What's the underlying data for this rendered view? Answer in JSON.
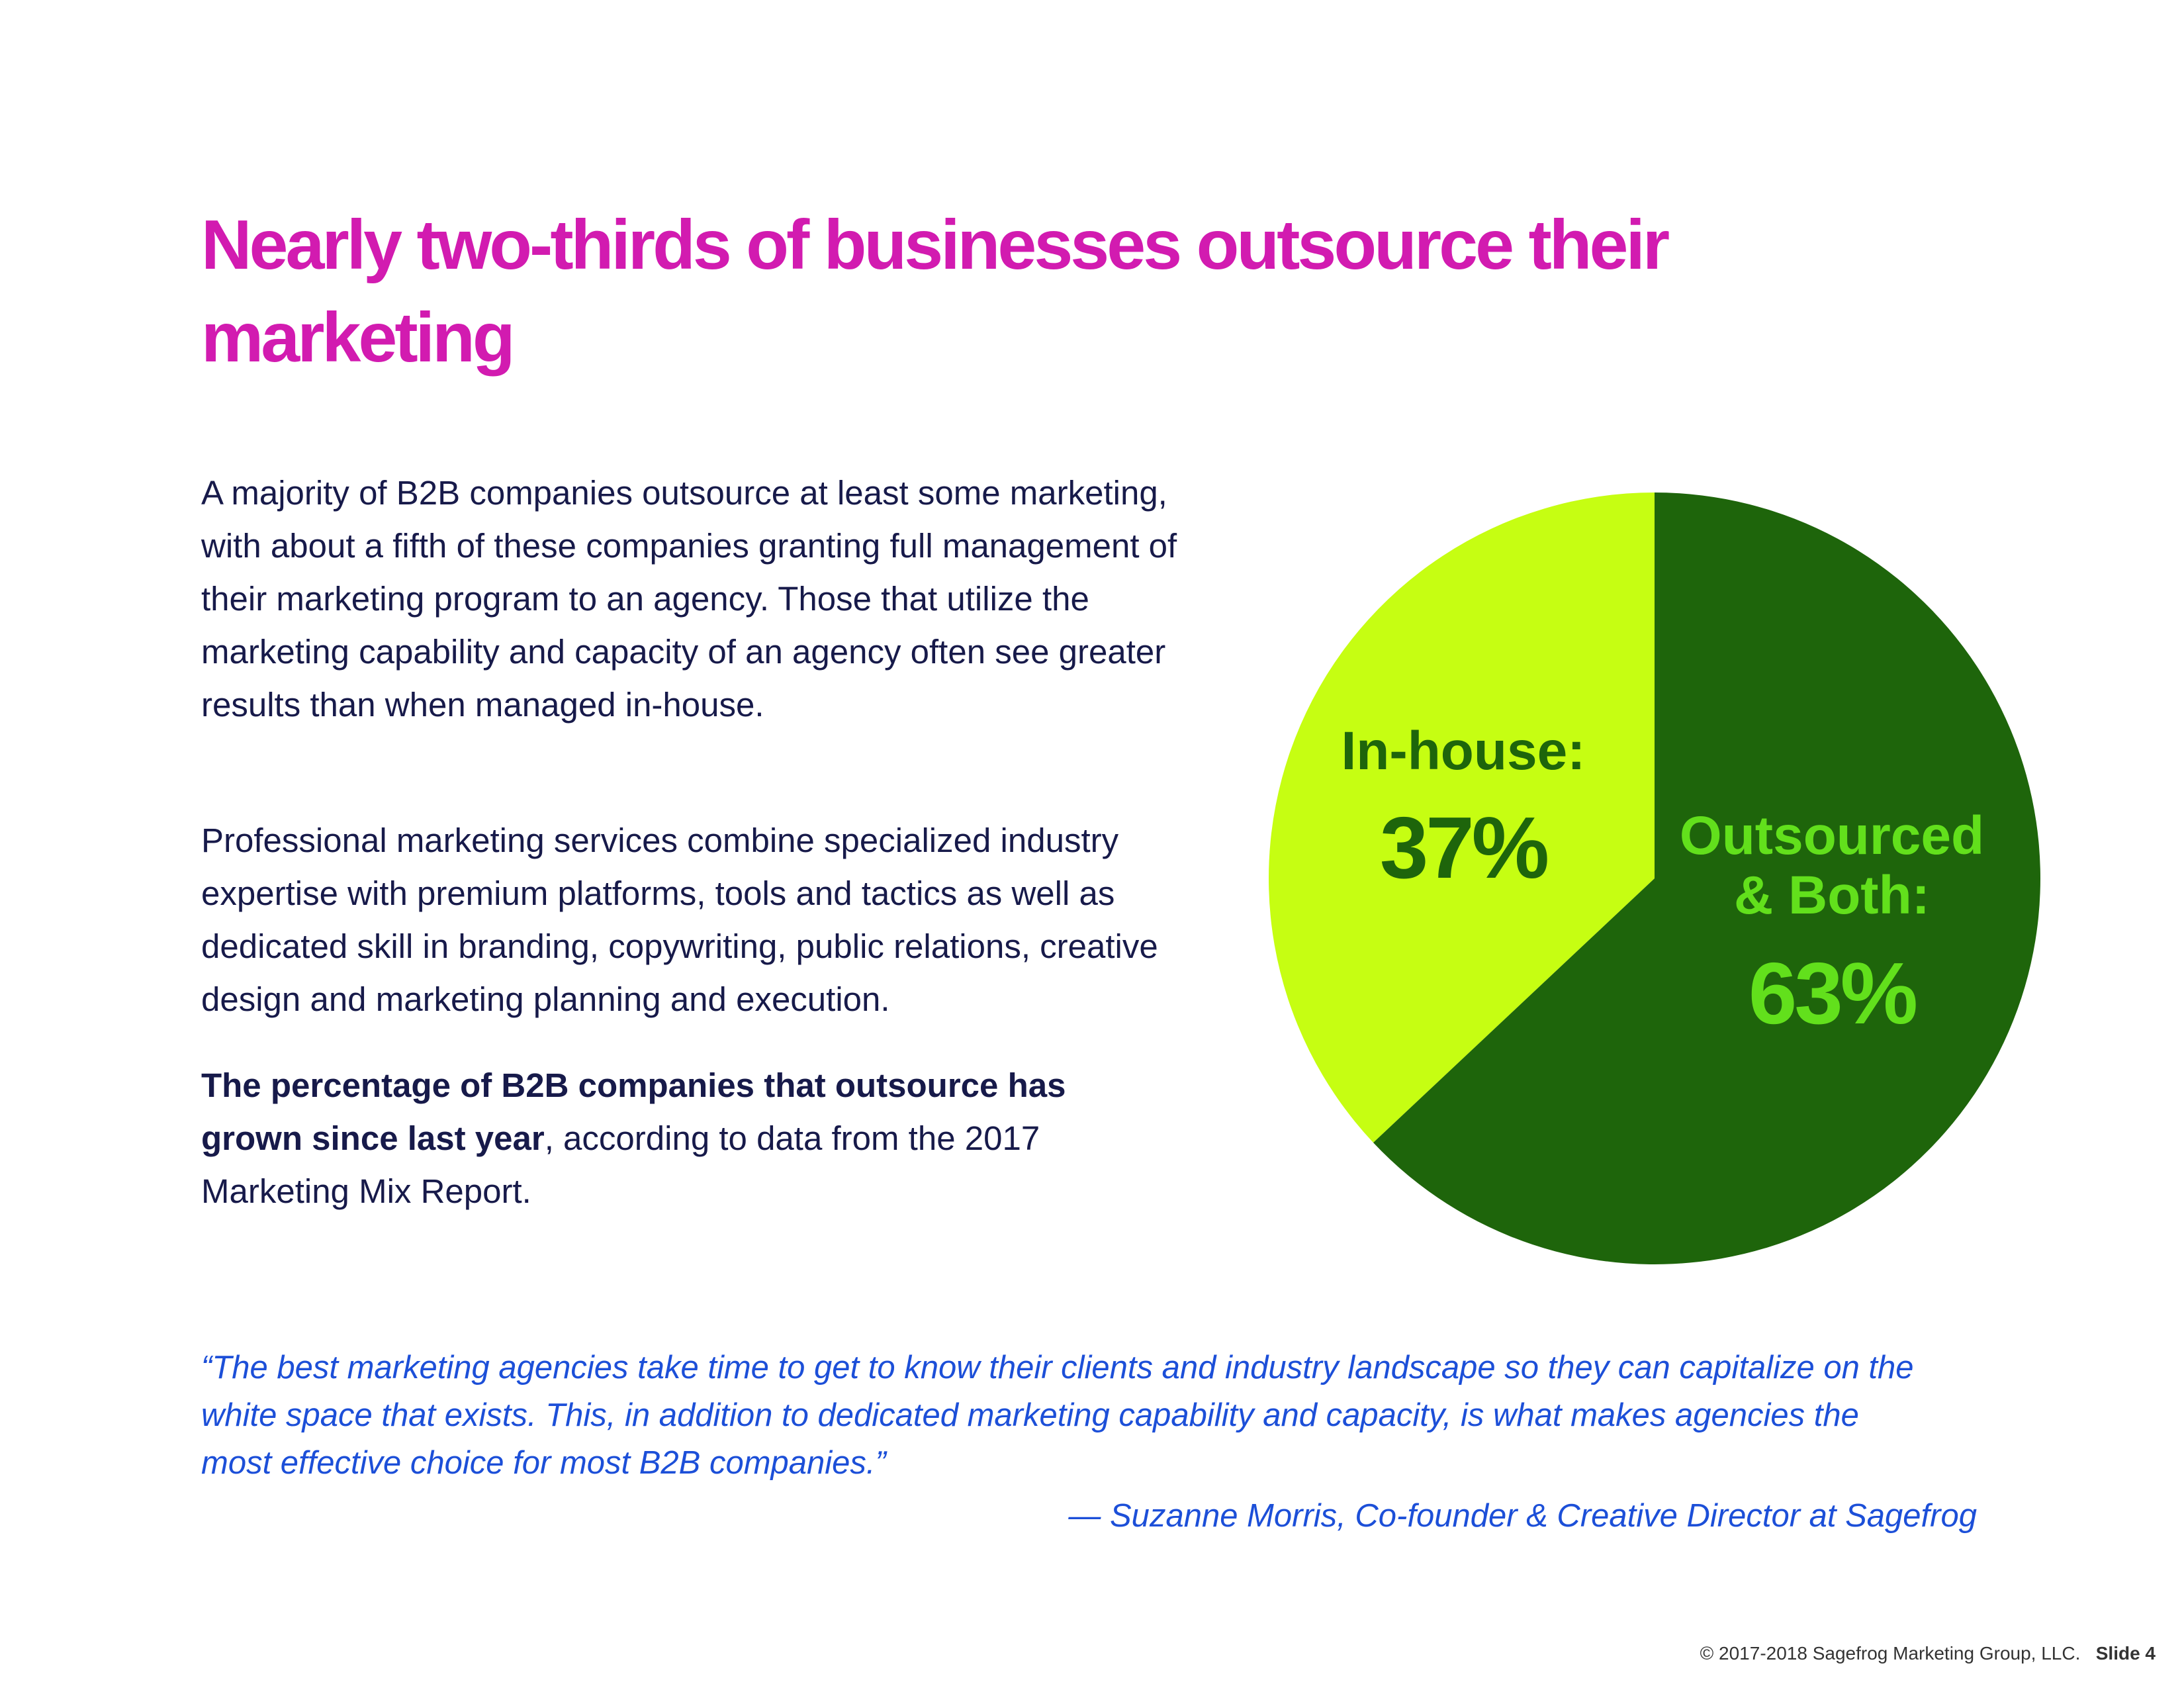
{
  "title": "Nearly two-thirds of businesses outsource their marketing",
  "paragraphs": [
    "A majority of B2B companies outsource at least some marketing, with about a fifth of these companies granting full management of their marketing program to an agency. Those that utilize the marketing capability and capacity of an agency often see greater results than when managed in-house.",
    "Professional marketing services combine specialized industry expertise with premium platforms, tools and tactics as well as dedicated skill in branding, copywriting, public relations, creative design and marketing planning and execution."
  ],
  "highlight": {
    "bold": "The percentage of B2B companies that outsource has grown since last year",
    "rest": ", according to data from the 2017 Marketing Mix Report."
  },
  "quote": {
    "text": "“The best marketing agencies take time to get to know their clients and industry landscape so they can capitalize on the white space that exists. This, in addition to dedicated marketing capability and capacity, is what makes agencies the most effective choice for most B2B companies.”",
    "attribution": "— Suzanne Morris, Co-founder & Creative Director at Sagefrog"
  },
  "footer": {
    "copyright": "© 2017-2018 Sagefrog Marketing Group, LLC.",
    "slide": "Slide 4"
  },
  "chart_data": {
    "type": "pie",
    "categories": [
      "In-house:",
      "Outsourced & Both:"
    ],
    "values": [
      37,
      63
    ],
    "value_labels": [
      "37%",
      "63%"
    ],
    "colors": [
      "#c6fe12",
      "#1e650b"
    ],
    "label_colors": [
      "#1e650b",
      "#62e01c"
    ]
  }
}
